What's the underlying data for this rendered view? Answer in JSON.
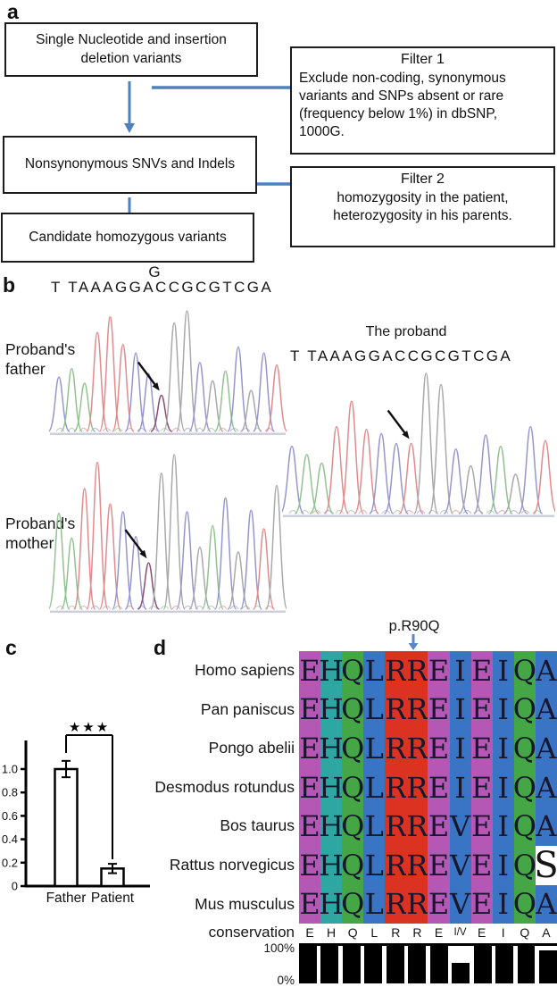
{
  "labels": {
    "a": "a",
    "b": "b",
    "c": "c",
    "d": "d"
  },
  "colors": {
    "flow_accent": "#4f81bd",
    "annotation_arrow": "#5b87c5",
    "trace": {
      "A": "#92c292",
      "T": "#e28a8c",
      "C": "#9596d0",
      "G": "#a9a9a9",
      "V": "#8c4c72"
    },
    "alignment_columns": [
      "#b558b5",
      "#2ea7a2",
      "#44a644",
      "#3a74c4",
      "#dc3222",
      "#dc3222",
      "#b558b5",
      "#3a74c4",
      "#b558b5",
      "#3a74c4",
      "#44a644",
      "#3a74c4"
    ]
  },
  "panels": {
    "a": {
      "boxes": [
        {
          "text": "Single Nucleotide and insertion\ndeletion variants"
        },
        {
          "text": "Nonsynonymous SNVs and Indels"
        },
        {
          "text": "Candidate homozygous variants"
        }
      ],
      "filters": [
        {
          "title": "Filter 1",
          "body": "Exclude non-coding, synonymous\nvariants and SNPs absent or rare\n(frequency below 1%) in dbSNP,\n1000G."
        },
        {
          "title": "Filter 2",
          "body": "homozygosity in the patient,\nheterozygosity in his parents."
        }
      ]
    },
    "b": {
      "variant_base": "G",
      "sequence_father": "T TAAAGGACCGCGTCGA",
      "sequence_proband": "T TAAAGGACCGCGTCGA",
      "label_father": "Proband's\nfather",
      "label_mother": "Proband's\nmother",
      "proband_title": "The proband",
      "traces": {
        "father": {
          "arrow": 8,
          "peaks": [
            {
              "c": "C",
              "h": 0.45
            },
            {
              "c": "A",
              "h": 0.52
            },
            {
              "c": "A",
              "h": 0.4
            },
            {
              "c": "T",
              "h": 0.82
            },
            {
              "c": "T",
              "h": 0.95
            },
            {
              "c": "T",
              "h": 0.72
            },
            {
              "c": "C",
              "h": 0.65
            },
            {
              "c": "C",
              "h": 0.48
            },
            {
              "c": "V",
              "h": 0.3
            },
            {
              "c": "G",
              "h": 0.9
            },
            {
              "c": "G",
              "h": 1.0
            },
            {
              "c": "C",
              "h": 0.57
            },
            {
              "c": "G",
              "h": 0.42
            },
            {
              "c": "A",
              "h": 0.5
            },
            {
              "c": "C",
              "h": 0.7
            },
            {
              "c": "G",
              "h": 0.34
            },
            {
              "c": "C",
              "h": 0.65
            },
            {
              "c": "T",
              "h": 0.55
            }
          ]
        },
        "mother": {
          "arrow": 7,
          "peaks": [
            {
              "c": "A",
              "h": 0.62
            },
            {
              "c": "A",
              "h": 0.46
            },
            {
              "c": "T",
              "h": 0.78
            },
            {
              "c": "T",
              "h": 0.95
            },
            {
              "c": "T",
              "h": 0.68
            },
            {
              "c": "C",
              "h": 0.63
            },
            {
              "c": "C",
              "h": 0.47
            },
            {
              "c": "V",
              "h": 0.3
            },
            {
              "c": "G",
              "h": 0.88
            },
            {
              "c": "G",
              "h": 1.0
            },
            {
              "c": "C",
              "h": 0.63
            },
            {
              "c": "G",
              "h": 0.4
            },
            {
              "c": "A",
              "h": 0.54
            },
            {
              "c": "C",
              "h": 0.72
            },
            {
              "c": "G",
              "h": 0.37
            },
            {
              "c": "C",
              "h": 0.64
            },
            {
              "c": "T",
              "h": 0.52
            },
            {
              "c": "G",
              "h": 0.8
            }
          ]
        },
        "proband": {
          "arrow": 8,
          "peaks": [
            {
              "c": "C",
              "h": 0.48
            },
            {
              "c": "A",
              "h": 0.42
            },
            {
              "c": "A",
              "h": 0.36
            },
            {
              "c": "T",
              "h": 0.62
            },
            {
              "c": "T",
              "h": 0.8
            },
            {
              "c": "T",
              "h": 0.6
            },
            {
              "c": "C",
              "h": 0.57
            },
            {
              "c": "C",
              "h": 0.5
            },
            {
              "c": "T",
              "h": 0.5
            },
            {
              "c": "G",
              "h": 1.0
            },
            {
              "c": "G",
              "h": 0.92
            },
            {
              "c": "C",
              "h": 0.46
            },
            {
              "c": "G",
              "h": 0.34
            },
            {
              "c": "C",
              "h": 0.56
            },
            {
              "c": "A",
              "h": 0.48
            },
            {
              "c": "G",
              "h": 0.28
            },
            {
              "c": "C",
              "h": 0.62
            },
            {
              "c": "T",
              "h": 0.52
            }
          ]
        }
      }
    },
    "d": {
      "mutation_label": "p.R90Q",
      "rows": [
        {
          "species": "Homo sapiens",
          "seq": "EHQLRREIEIQA"
        },
        {
          "species": "Pan paniscus",
          "seq": "EHQLRREIEIQA"
        },
        {
          "species": "Pongo abelii",
          "seq": "EHQLRREIEIQA"
        },
        {
          "species": "Desmodus rotundus",
          "seq": "EHQLRREIEIQA"
        },
        {
          "species": "Bos taurus",
          "seq": "EHQLRREVEIQA"
        },
        {
          "species": "Rattus norvegicus",
          "seq": "EHQLRREVEIQS",
          "special_last": true
        },
        {
          "species": "Mus musculus",
          "seq": "EHQLRREVEIQA"
        }
      ]
    }
  },
  "chart_data": [
    {
      "id": "panel-c-expression",
      "type": "bar",
      "categories": [
        "Father",
        "Patient"
      ],
      "values": [
        1.0,
        0.15
      ],
      "errors": [
        0.07,
        0.04
      ],
      "yticks": [
        0,
        0.2,
        0.4,
        0.6,
        0.8,
        1.0
      ],
      "ylim": [
        0,
        1.25
      ],
      "significance": "★★★",
      "title": "",
      "xlabel": "",
      "ylabel": ""
    },
    {
      "id": "panel-d-conservation",
      "type": "bar",
      "ylabel": "conservation",
      "categories": [
        "E",
        "H",
        "Q",
        "L",
        "R",
        "R",
        "E",
        "I/V",
        "E",
        "I",
        "Q",
        "A"
      ],
      "values": [
        100,
        100,
        100,
        100,
        100,
        100,
        100,
        55,
        100,
        100,
        100,
        88
      ],
      "ylim": [
        0,
        100
      ],
      "ytick_labels": [
        "100%",
        "0%"
      ]
    }
  ]
}
